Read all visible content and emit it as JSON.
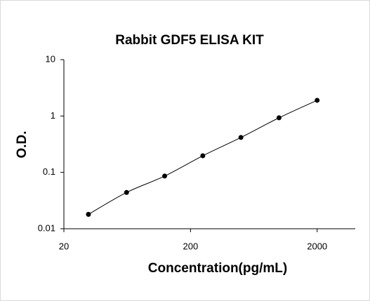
{
  "chart_data": {
    "type": "scatter",
    "title": "Rabbit GDF5 ELISA KIT",
    "xlabel": "Concentration(pg/mL)",
    "ylabel": "O.D.",
    "x": [
      31.25,
      62.5,
      125,
      250,
      500,
      1000,
      2000
    ],
    "series": [
      {
        "color": "#000000",
        "values": [
          0.018,
          0.044,
          0.086,
          0.197,
          0.416,
          0.93,
          1.9
        ]
      }
    ],
    "xscale": "log",
    "yscale": "log",
    "xlim": [
      20,
      4000
    ],
    "xticks": [
      20,
      200,
      2000
    ],
    "ylim": [
      0.01,
      10
    ],
    "yticks": [
      0.01,
      0.1,
      1,
      10
    ],
    "fit_line": true
  }
}
